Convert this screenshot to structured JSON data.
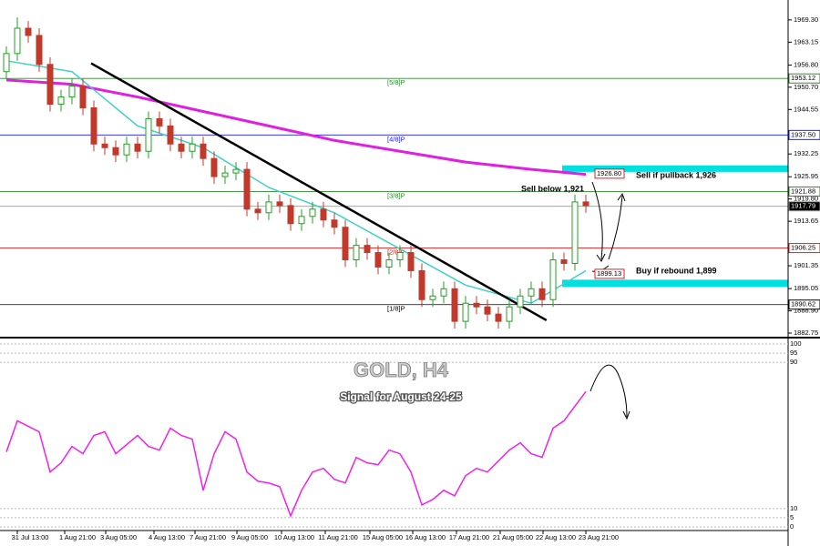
{
  "chart_data": {
    "type": "candlestick",
    "title": "GOLD, H4",
    "subtitle": "Signal for August 24-25",
    "annotations": [
      "Sell if pullback 1,926",
      "Sell below 1,921",
      "Buy if rebound 1,899"
    ],
    "xlabels": [
      "31 Jul 13:00",
      "1 Aug 21:00",
      "3 Aug 05:00",
      "4 Aug 13:00",
      "7 Aug 21:00",
      "9 Aug 05:00",
      "10 Aug 13:00",
      "11 Aug 21:00",
      "15 Aug 05:00",
      "16 Aug 13:00",
      "17 Aug 21:00",
      "21 Aug 05:00",
      "22 Aug 13:00",
      "23 Aug 21:00"
    ],
    "up_color": "#22a022",
    "down_color": "#c0392b",
    "candles": {
      "open": [
        1955,
        1960,
        1967,
        1965,
        1957,
        1946,
        1948,
        1951,
        1945,
        1935,
        1934,
        1932,
        1935,
        1933,
        1942,
        1940,
        1935,
        1933,
        1935,
        1931,
        1926,
        1927,
        1928,
        1917,
        1916,
        1919,
        1918,
        1913,
        1915,
        1917,
        1914,
        1912,
        1903,
        1907,
        1905,
        1901,
        1903,
        1905,
        1900,
        1892,
        1893,
        1895,
        1886,
        1891,
        1890,
        1888,
        1886,
        1890,
        1893,
        1895,
        1892,
        1903,
        1902,
        1919
      ],
      "high": [
        1962,
        1970,
        1969,
        1967,
        1959,
        1950,
        1953,
        1953,
        1947,
        1937,
        1936,
        1937,
        1937,
        1944,
        1944,
        1942,
        1937,
        1937,
        1937,
        1933,
        1929,
        1930,
        1930,
        1919,
        1921,
        1921,
        1920,
        1917,
        1919,
        1919,
        1916,
        1914,
        1909,
        1909,
        1907,
        1905,
        1907,
        1907,
        1902,
        1895,
        1897,
        1897,
        1893,
        1893,
        1892,
        1890,
        1892,
        1895,
        1897,
        1897,
        1905,
        1905,
        1921,
        1921
      ],
      "low": [
        1953,
        1958,
        1963,
        1955,
        1944,
        1944,
        1946,
        1943,
        1933,
        1932,
        1930,
        1930,
        1931,
        1931,
        1938,
        1933,
        1931,
        1931,
        1929,
        1924,
        1924,
        1925,
        1915,
        1914,
        1914,
        1916,
        1911,
        1911,
        1913,
        1912,
        1910,
        1901,
        1901,
        1903,
        1899,
        1899,
        1901,
        1898,
        1890,
        1890,
        1891,
        1884,
        1884,
        1888,
        1886,
        1884,
        1884,
        1888,
        1891,
        1890,
        1890,
        1900,
        1900,
        1916
      ],
      "close": [
        1960,
        1967,
        1965,
        1957,
        1946,
        1948,
        1951,
        1945,
        1935,
        1934,
        1932,
        1935,
        1933,
        1942,
        1940,
        1935,
        1933,
        1935,
        1931,
        1926,
        1927,
        1928,
        1917,
        1916,
        1919,
        1918,
        1913,
        1915,
        1917,
        1914,
        1912,
        1903,
        1907,
        1905,
        1901,
        1903,
        1905,
        1900,
        1892,
        1893,
        1895,
        1886,
        1891,
        1890,
        1888,
        1886,
        1890,
        1893,
        1895,
        1892,
        1903,
        1902,
        1919,
        1918
      ]
    },
    "overlays": [
      {
        "color": "#e020e0",
        "x": [
          0,
          6,
          12,
          18,
          24,
          30,
          36,
          42,
          48,
          53
        ],
        "values": [
          1952.7,
          1951.5,
          1948,
          1944,
          1940,
          1936,
          1933,
          1930,
          1928,
          1926.6
        ]
      },
      {
        "color": "#40d0c8",
        "x": [
          0,
          6,
          12,
          18,
          24,
          30,
          36,
          42,
          48,
          53
        ],
        "values": [
          1958,
          1955,
          1940,
          1934,
          1923,
          1916,
          1906,
          1896,
          1891,
          1900
        ]
      },
      {
        "color": "#000000",
        "x": [
          7.75,
          49.4
        ],
        "values": [
          1957.3,
          1886.3
        ]
      }
    ],
    "levels": [
      {
        "value": 1953.12,
        "label": "1953.12",
        "tag": "[5/8]P",
        "color": "#2e8b2e"
      },
      {
        "value": 1937.5,
        "label": "1937.50",
        "tag": "[4/8]P",
        "color": "#1a1aff"
      },
      {
        "value": 1921.88,
        "label": "1921.88",
        "tag": "[3/8]P",
        "color": "#2e8b2e"
      },
      {
        "value": 1917.79,
        "label": "1917.79",
        "color": "#999999"
      },
      {
        "value": 1906.25,
        "label": "1906.25",
        "tag": "[2/8]P",
        "color": "#e02020"
      },
      {
        "value": 1890.62,
        "label": "1890.62",
        "tag": "[1/8]P",
        "color": "#000000"
      }
    ],
    "callouts": [
      {
        "value": 1926.8,
        "label": "1926.80"
      },
      {
        "value": 1899.13,
        "label": "1899.13"
      }
    ],
    "zones": [
      {
        "low": 1927.3,
        "high": 1929.1,
        "color": "#00e0e0"
      },
      {
        "low": 1895.5,
        "high": 1897.5,
        "color": "#00e0e0"
      }
    ],
    "ylim": [
      1881.5,
      1974.8
    ],
    "yticks": [
      {
        "value": 1969.3,
        "label": "1969.30"
      },
      {
        "value": 1963.15,
        "label": "1963.15"
      },
      {
        "value": 1956.8,
        "label": "1956.80"
      },
      {
        "value": 1950.7,
        "label": "1950.70"
      },
      {
        "value": 1944.55,
        "label": "1944.55"
      },
      {
        "value": 1932.25,
        "label": "1932.25"
      },
      {
        "value": 1925.95,
        "label": "1925.95"
      },
      {
        "value": 1919.8,
        "label": "1919.80"
      },
      {
        "value": 1913.65,
        "label": "1913.65"
      },
      {
        "value": 1901.35,
        "label": "1901.35"
      },
      {
        "value": 1895.05,
        "label": "1895.05"
      },
      {
        "value": 1888.9,
        "label": "1888.90"
      },
      {
        "value": 1882.75,
        "label": "1882.75"
      }
    ],
    "oscillator": {
      "color": "#f020f0",
      "values": [
        41,
        58,
        55,
        52,
        30,
        35,
        44,
        40,
        50,
        52,
        40,
        45,
        50,
        44,
        42,
        54,
        50,
        48,
        20,
        40,
        52,
        48,
        30,
        25,
        24,
        22,
        6,
        20,
        30,
        32,
        26,
        24,
        38,
        35,
        34,
        42,
        40,
        30,
        12,
        15,
        20,
        17,
        28,
        32,
        30,
        36,
        42,
        46,
        40,
        38,
        54,
        58,
        66,
        74
      ],
      "ylim": [
        -2,
        101.5
      ],
      "yticks": [
        100,
        95,
        90,
        10,
        5,
        0
      ]
    }
  }
}
